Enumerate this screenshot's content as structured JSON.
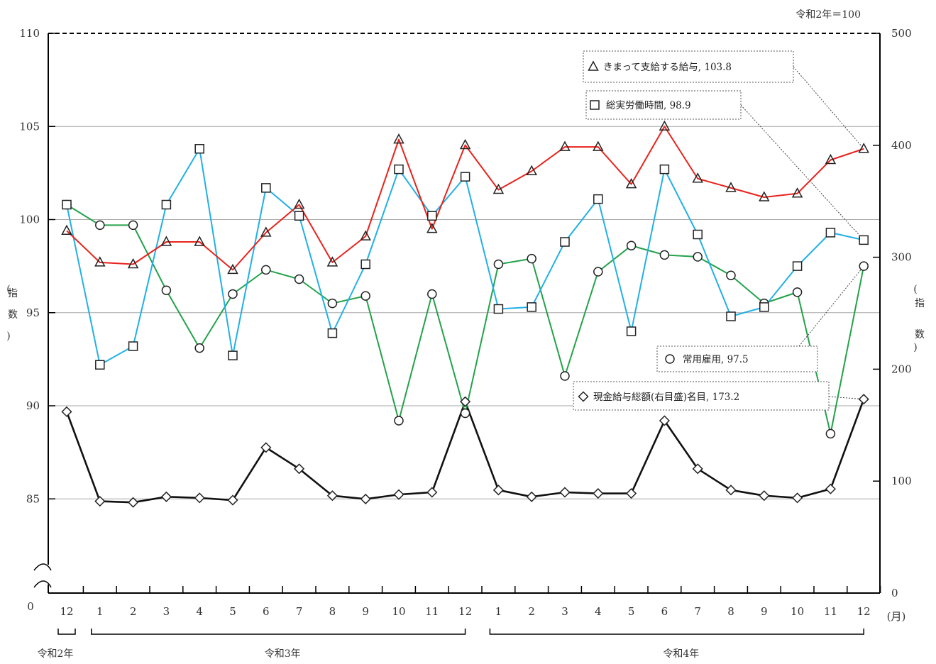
{
  "chart_data": {
    "type": "line",
    "unit_note": "令和2年＝100",
    "left_axis": {
      "label_parts": [
        "(",
        "指",
        "数",
        ")"
      ],
      "ylim": [
        80,
        110
      ],
      "ticks": [
        110,
        105,
        100,
        95,
        90,
        85
      ],
      "zero_label": "0",
      "axis_break": true
    },
    "right_axis": {
      "label_parts": [
        "(",
        "指",
        "数",
        ")"
      ],
      "ylim": [
        0,
        500
      ],
      "ticks": [
        500,
        400,
        300,
        200,
        100,
        0
      ]
    },
    "x": {
      "months": [
        "12",
        "1",
        "2",
        "3",
        "4",
        "5",
        "6",
        "7",
        "8",
        "9",
        "10",
        "11",
        "12",
        "1",
        "2",
        "3",
        "4",
        "5",
        "6",
        "7",
        "8",
        "9",
        "10",
        "11",
        "12"
      ],
      "unit": "(月)",
      "year_groups": [
        {
          "label": "令和2年",
          "start": 0,
          "end": 0
        },
        {
          "label": "令和3年",
          "start": 1,
          "end": 12
        },
        {
          "label": "令和4年",
          "start": 13,
          "end": 24
        }
      ]
    },
    "grid": true,
    "series": [
      {
        "name": "きまって支給する給与",
        "marker": "triangle",
        "color": "#e8231c",
        "axis": "left",
        "values": [
          99.4,
          97.7,
          97.6,
          98.8,
          98.8,
          97.3,
          99.3,
          100.8,
          97.7,
          99.1,
          104.3,
          99.5,
          104.0,
          101.6,
          102.6,
          103.9,
          103.9,
          101.9,
          105.0,
          102.2,
          101.7,
          101.2,
          101.4,
          103.2,
          103.8
        ]
      },
      {
        "name": "総実労働時間",
        "marker": "square",
        "color": "#22b0e6",
        "axis": "left",
        "values": [
          100.8,
          92.2,
          93.2,
          100.8,
          103.8,
          92.7,
          101.7,
          100.2,
          93.9,
          97.6,
          102.7,
          100.2,
          102.3,
          95.2,
          95.3,
          98.8,
          101.1,
          94.0,
          102.7,
          99.2,
          94.8,
          95.3,
          97.5,
          99.3,
          98.9
        ]
      },
      {
        "name": "常用雇用",
        "marker": "circle",
        "color": "#23a24a",
        "axis": "left",
        "values": [
          100.8,
          99.7,
          99.7,
          96.2,
          93.1,
          96.0,
          97.3,
          96.8,
          95.5,
          95.9,
          89.2,
          96.0,
          89.6,
          97.6,
          97.9,
          91.6,
          97.2,
          98.6,
          98.1,
          98.0,
          97.0,
          95.5,
          96.1,
          88.5,
          97.5
        ]
      },
      {
        "name": "現金給与総額(右目盛)名目",
        "marker": "diamond",
        "color": "#111111",
        "axis": "right",
        "values": [
          162,
          82,
          81,
          86,
          85,
          83,
          130,
          111,
          87,
          84,
          88,
          90,
          171,
          92,
          86,
          90,
          89,
          89,
          154,
          111,
          92,
          87,
          85,
          93,
          173.2
        ]
      }
    ],
    "legend": [
      {
        "symbol": "△",
        "text": "きまって支給する給与, 103.8"
      },
      {
        "symbol": "□",
        "text": "総実労働時間, 98.9"
      },
      {
        "symbol": "○",
        "text": "常用雇用, 97.5"
      },
      {
        "symbol": "◇",
        "text": "現金給与総額(右目盛)名目, 173.2"
      }
    ]
  }
}
